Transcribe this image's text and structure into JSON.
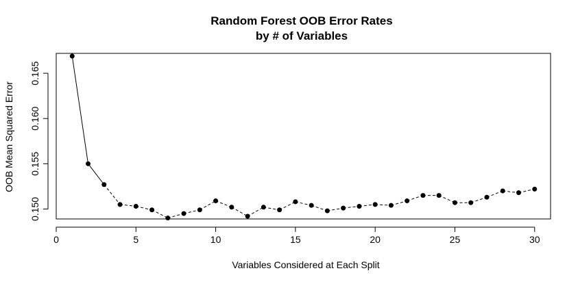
{
  "chart_data": {
    "type": "line",
    "title": "Random Forest OOB Error Rates",
    "subtitle": "by # of Variables",
    "xlabel": "Variables Considered at Each Split",
    "ylabel": "OOB Mean Squared Error",
    "xlim": [
      0,
      31
    ],
    "ylim": [
      0.1489,
      0.1672
    ],
    "xticks": [
      0,
      5,
      10,
      15,
      20,
      25,
      30
    ],
    "xtick_labels": [
      "0",
      "5",
      "10",
      "15",
      "20",
      "25",
      "30"
    ],
    "yticks": [
      0.15,
      0.155,
      0.16,
      0.165
    ],
    "ytick_labels": [
      "0.150",
      "0.155",
      "0.160",
      "0.165"
    ],
    "grid": false,
    "marker": "filled-circle",
    "line_style": "solid-then-dashed",
    "series": [
      {
        "x": [
          1,
          2,
          3,
          4,
          5,
          6,
          7,
          8,
          9,
          10,
          11,
          12,
          13,
          14,
          15,
          16,
          17,
          18,
          19,
          20,
          21,
          22,
          23,
          24,
          25,
          26,
          27,
          28,
          29,
          30
        ],
        "values": [
          0.1669,
          0.155,
          0.1527,
          0.1505,
          0.1503,
          0.1499,
          0.149,
          0.1495,
          0.1499,
          0.1509,
          0.1502,
          0.1492,
          0.1502,
          0.1499,
          0.1508,
          0.1504,
          0.1498,
          0.1501,
          0.1503,
          0.1505,
          0.1504,
          0.1509,
          0.1515,
          0.1515,
          0.1507,
          0.1507,
          0.1513,
          0.152,
          0.1518,
          0.1522
        ]
      }
    ]
  }
}
